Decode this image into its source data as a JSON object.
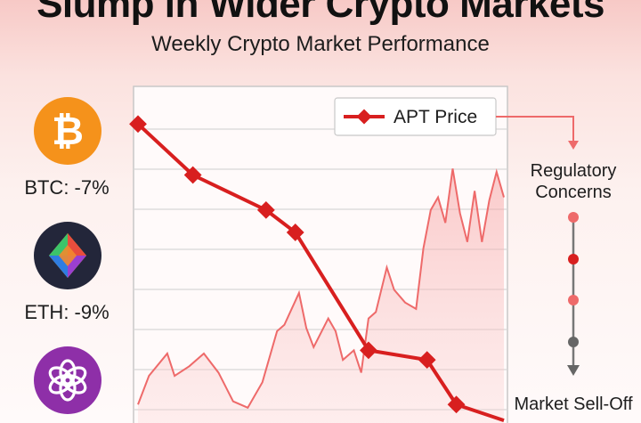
{
  "header": {
    "headline": "Slump in Wider Crypto Markets",
    "subtitle": "Weekly Crypto Market Performance"
  },
  "sidebar": {
    "coins": [
      {
        "label": "BTC: -7%",
        "icon": "bitcoin-icon",
        "color": "#f5921b"
      },
      {
        "label": "ETH: -9%",
        "icon": "multicolor-diamond-icon",
        "color": "#23263a"
      },
      {
        "label": "",
        "icon": "openai-knot-icon",
        "color": "#8e2fa8"
      }
    ]
  },
  "timeline": {
    "top_label": "Regulatory Concerns",
    "bottom_label": "Market Sell-Off"
  },
  "chart_data": {
    "type": "line",
    "grid": true,
    "legend_position": "top-right",
    "xlim": [
      0,
      100
    ],
    "ylim": [
      0,
      100
    ],
    "series": [
      {
        "name": "APT Price",
        "color": "#d81f1f",
        "markers": true,
        "x": [
          0,
          15,
          35,
          43,
          63,
          79,
          87,
          100
        ],
        "y": [
          91,
          75,
          64,
          57,
          20,
          17,
          3,
          -2
        ]
      },
      {
        "name": "",
        "color": "#ee6a6a",
        "fill": true,
        "x": [
          0,
          3,
          8,
          10,
          14,
          18,
          22,
          26,
          30,
          34,
          38,
          40,
          44,
          46,
          48,
          52,
          54,
          56,
          59,
          61,
          63,
          65,
          68,
          70,
          73,
          76,
          78,
          80,
          82,
          84,
          86,
          88,
          90,
          92,
          94,
          96,
          98,
          100
        ],
        "y": [
          3,
          12,
          19,
          12,
          15,
          19,
          13,
          4,
          2,
          10,
          26,
          28,
          38,
          27,
          21,
          30,
          26,
          17,
          20,
          13,
          30,
          32,
          46,
          39,
          35,
          33,
          52,
          64,
          68,
          60,
          77,
          63,
          54,
          70,
          54,
          67,
          76,
          68
        ]
      }
    ]
  }
}
